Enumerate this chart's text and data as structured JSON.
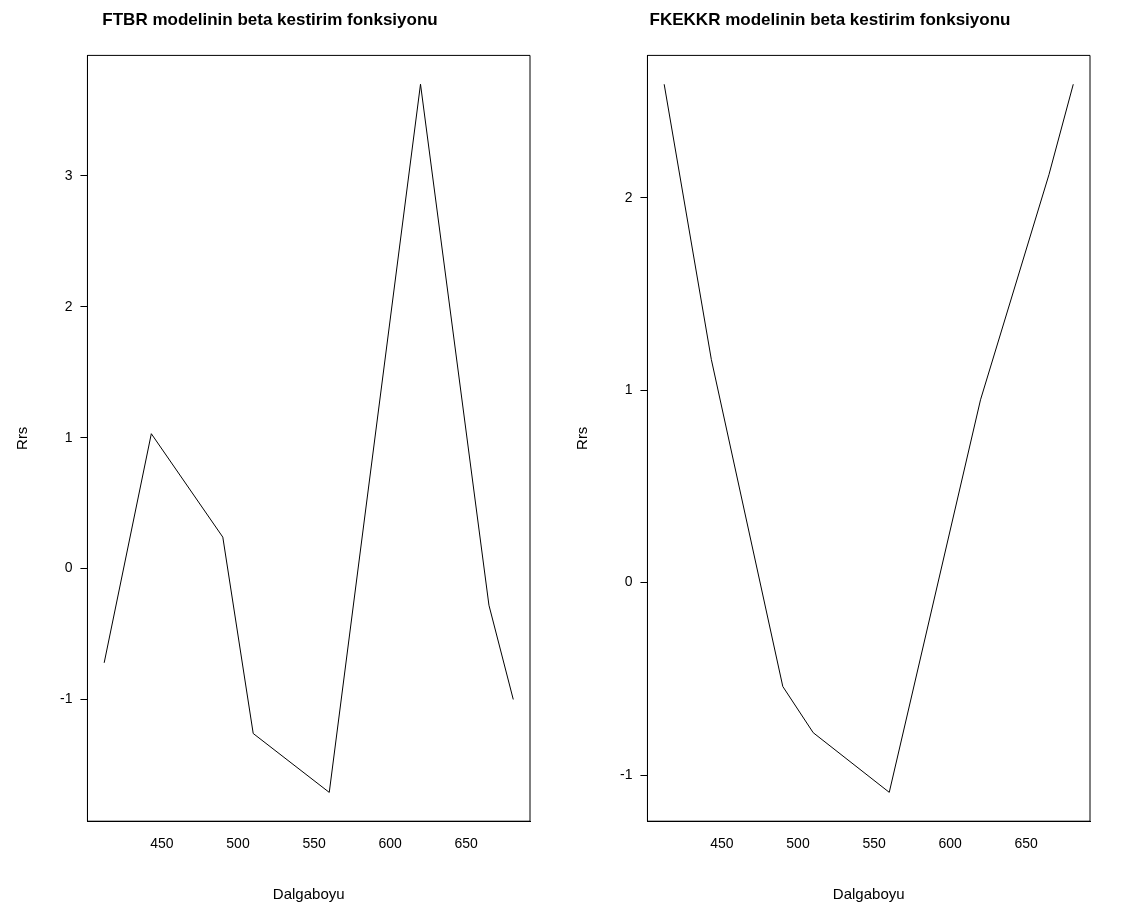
{
  "chart_data": [
    {
      "type": "line",
      "title": "FTBR modelinin beta kestirim fonksiyonu",
      "xlabel": "Dalgaboyu",
      "ylabel": "Rrs",
      "x": [
        412,
        443,
        490,
        510,
        560,
        620,
        665,
        681
      ],
      "series": [
        {
          "color": "#000000",
          "values": [
            -0.72,
            1.03,
            0.24,
            -1.26,
            -1.71,
            3.7,
            -0.28,
            -1.0
          ]
        }
      ],
      "xlim": [
        401,
        692
      ],
      "xticks": [
        450,
        500,
        550,
        600,
        650
      ],
      "ylim": [
        -1.93,
        3.92
      ],
      "yticks": [
        -1,
        0,
        1,
        2,
        3
      ],
      "grid": false,
      "legend": false,
      "marker": "none",
      "line_style": "solid"
    },
    {
      "type": "line",
      "title": "FKEKKR modelinin beta kestirim fonksiyonu",
      "xlabel": "Dalgaboyu",
      "ylabel": "Rrs",
      "x": [
        412,
        443,
        490,
        510,
        560,
        620,
        665,
        681
      ],
      "series": [
        {
          "color": "#000000",
          "values": [
            2.59,
            1.16,
            -0.54,
            -0.78,
            -1.09,
            0.95,
            2.12,
            2.59
          ]
        }
      ],
      "xlim": [
        401,
        692
      ],
      "xticks": [
        450,
        500,
        550,
        600,
        650
      ],
      "ylim": [
        -1.24,
        2.74
      ],
      "yticks": [
        -1,
        0,
        1,
        2
      ],
      "grid": false,
      "legend": false,
      "marker": "none",
      "line_style": "solid"
    }
  ]
}
